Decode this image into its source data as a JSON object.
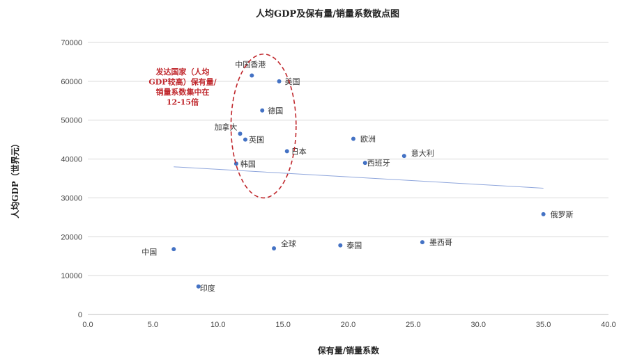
{
  "chart_data": {
    "type": "scatter",
    "title": "人均GDP及保有量/销量系数散点图",
    "xlabel": "保有量/销量系数",
    "ylabel": "人均GDP（世界元）",
    "xlim": [
      0,
      40
    ],
    "ylim": [
      0,
      70000
    ],
    "x_ticks": [
      "0.0",
      "5.0",
      "10.0",
      "15.0",
      "20.0",
      "25.0",
      "30.0",
      "35.0",
      "40.0"
    ],
    "y_ticks": [
      "0",
      "10000",
      "20000",
      "30000",
      "40000",
      "50000",
      "60000",
      "70000"
    ],
    "grid": "horizontal",
    "marker_color": "#4472c4",
    "trendline_color": "#8fa6dc",
    "points": [
      {
        "label": "中国香港",
        "x": 12.6,
        "y": 61500
      },
      {
        "label": "美国",
        "x": 14.7,
        "y": 60000
      },
      {
        "label": "德国",
        "x": 13.4,
        "y": 52500
      },
      {
        "label": "加拿大",
        "x": 11.7,
        "y": 46500
      },
      {
        "label": "英国",
        "x": 12.1,
        "y": 45000
      },
      {
        "label": "日本",
        "x": 15.3,
        "y": 42000
      },
      {
        "label": "韩国",
        "x": 11.4,
        "y": 38800
      },
      {
        "label": "欧洲",
        "x": 20.4,
        "y": 45200
      },
      {
        "label": "西班牙",
        "x": 21.3,
        "y": 39000
      },
      {
        "label": "意大利",
        "x": 24.3,
        "y": 40800
      },
      {
        "label": "俄罗斯",
        "x": 35.0,
        "y": 25800
      },
      {
        "label": "中国",
        "x": 6.6,
        "y": 16800
      },
      {
        "label": "全球",
        "x": 14.3,
        "y": 17000
      },
      {
        "label": "泰国",
        "x": 19.4,
        "y": 17800
      },
      {
        "label": "墨西哥",
        "x": 25.7,
        "y": 18600
      },
      {
        "label": "印度",
        "x": 8.5,
        "y": 7200
      }
    ],
    "trendline": {
      "x": [
        6.6,
        35.0
      ],
      "y": [
        38000,
        32500
      ]
    },
    "annotation": {
      "lines": [
        "发达国家（人均",
        "GDP较高）保有量/",
        "销量系数集中在",
        "12-15倍"
      ],
      "color": "#c0282d",
      "ellipse_center": [
        13.5,
        48500
      ],
      "ellipse_radius": [
        2.5,
        18500
      ]
    }
  }
}
